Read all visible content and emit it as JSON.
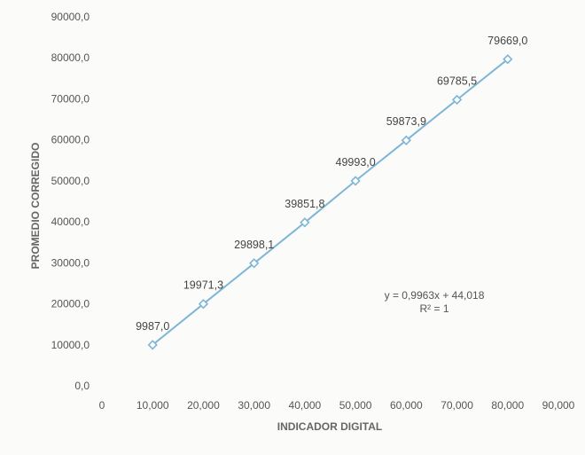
{
  "chart_data": {
    "type": "line",
    "xlabel": "INDICADOR DIGITAL",
    "ylabel": "PROMEDIO CORREGIDO",
    "x_ticks": [
      "0",
      "10,000",
      "20,000",
      "30,000",
      "40,000",
      "50,000",
      "60,000",
      "70,000",
      "80,000",
      "90,000"
    ],
    "y_ticks": [
      "0,0",
      "10000,0",
      "20000,0",
      "30000,0",
      "40000,0",
      "50000,0",
      "60000,0",
      "70000,0",
      "80000,0",
      "90000,0"
    ],
    "xlim": [
      0,
      90000
    ],
    "ylim": [
      0,
      90000
    ],
    "grid": false,
    "legend": "none",
    "series": [
      {
        "x": [
          10000,
          20000,
          30000,
          40000,
          50000,
          60000,
          70000,
          80000
        ],
        "y": [
          9987.0,
          19971.3,
          29898.1,
          39851.8,
          49993.0,
          59873.9,
          69785.5,
          79669.0
        ],
        "labels": [
          "9987,0",
          "19971,3",
          "29898,1",
          "39851,8",
          "49993,0",
          "59873,9",
          "69785,5",
          "79669,0"
        ],
        "marker": "diamond",
        "color": "#7fb6d6"
      }
    ],
    "annotations": {
      "equation": "y = 0,9963x + 44,018",
      "r_squared": "R² = 1"
    }
  }
}
